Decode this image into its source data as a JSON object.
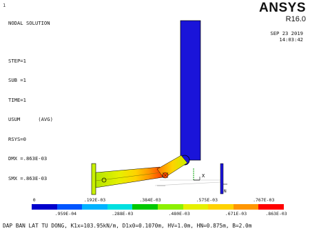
{
  "solution": {
    "title": "NODAL SOLUTION",
    "lines": [
      "STEP=1",
      "SUB =1",
      "TIME=1",
      "USUM      (AVG)",
      "RSYS=0",
      "DMX =.863E-03",
      "SMX =.863E-03"
    ]
  },
  "brand": {
    "name": "ANSYS",
    "version": "R16.0",
    "corner_mark": "1"
  },
  "timestamp": {
    "date": "SEP 23 2019",
    "time": "14:03:42"
  },
  "triad": {
    "x_label": "X",
    "z_label": "N"
  },
  "legend": {
    "colors": [
      "#0000cc",
      "#0055ff",
      "#00b2ff",
      "#00e0e0",
      "#00c800",
      "#8cf000",
      "#e6f000",
      "#ffd200",
      "#ff9600",
      "#ff0000"
    ],
    "upper_labels": [
      "0",
      ".192E-03",
      ".384E-03",
      ".575E-03",
      ".767E-03"
    ],
    "lower_labels": [
      ".959E-04",
      ".288E-03",
      ".480E-03",
      ".671E-03",
      ".863E-03"
    ]
  },
  "caption": "DAP BAN LAT TU DONG, K1x=103.95kN/m, D1x0=0.1070m, HV=1.0m, HN=0.875m, B=2.0m"
}
